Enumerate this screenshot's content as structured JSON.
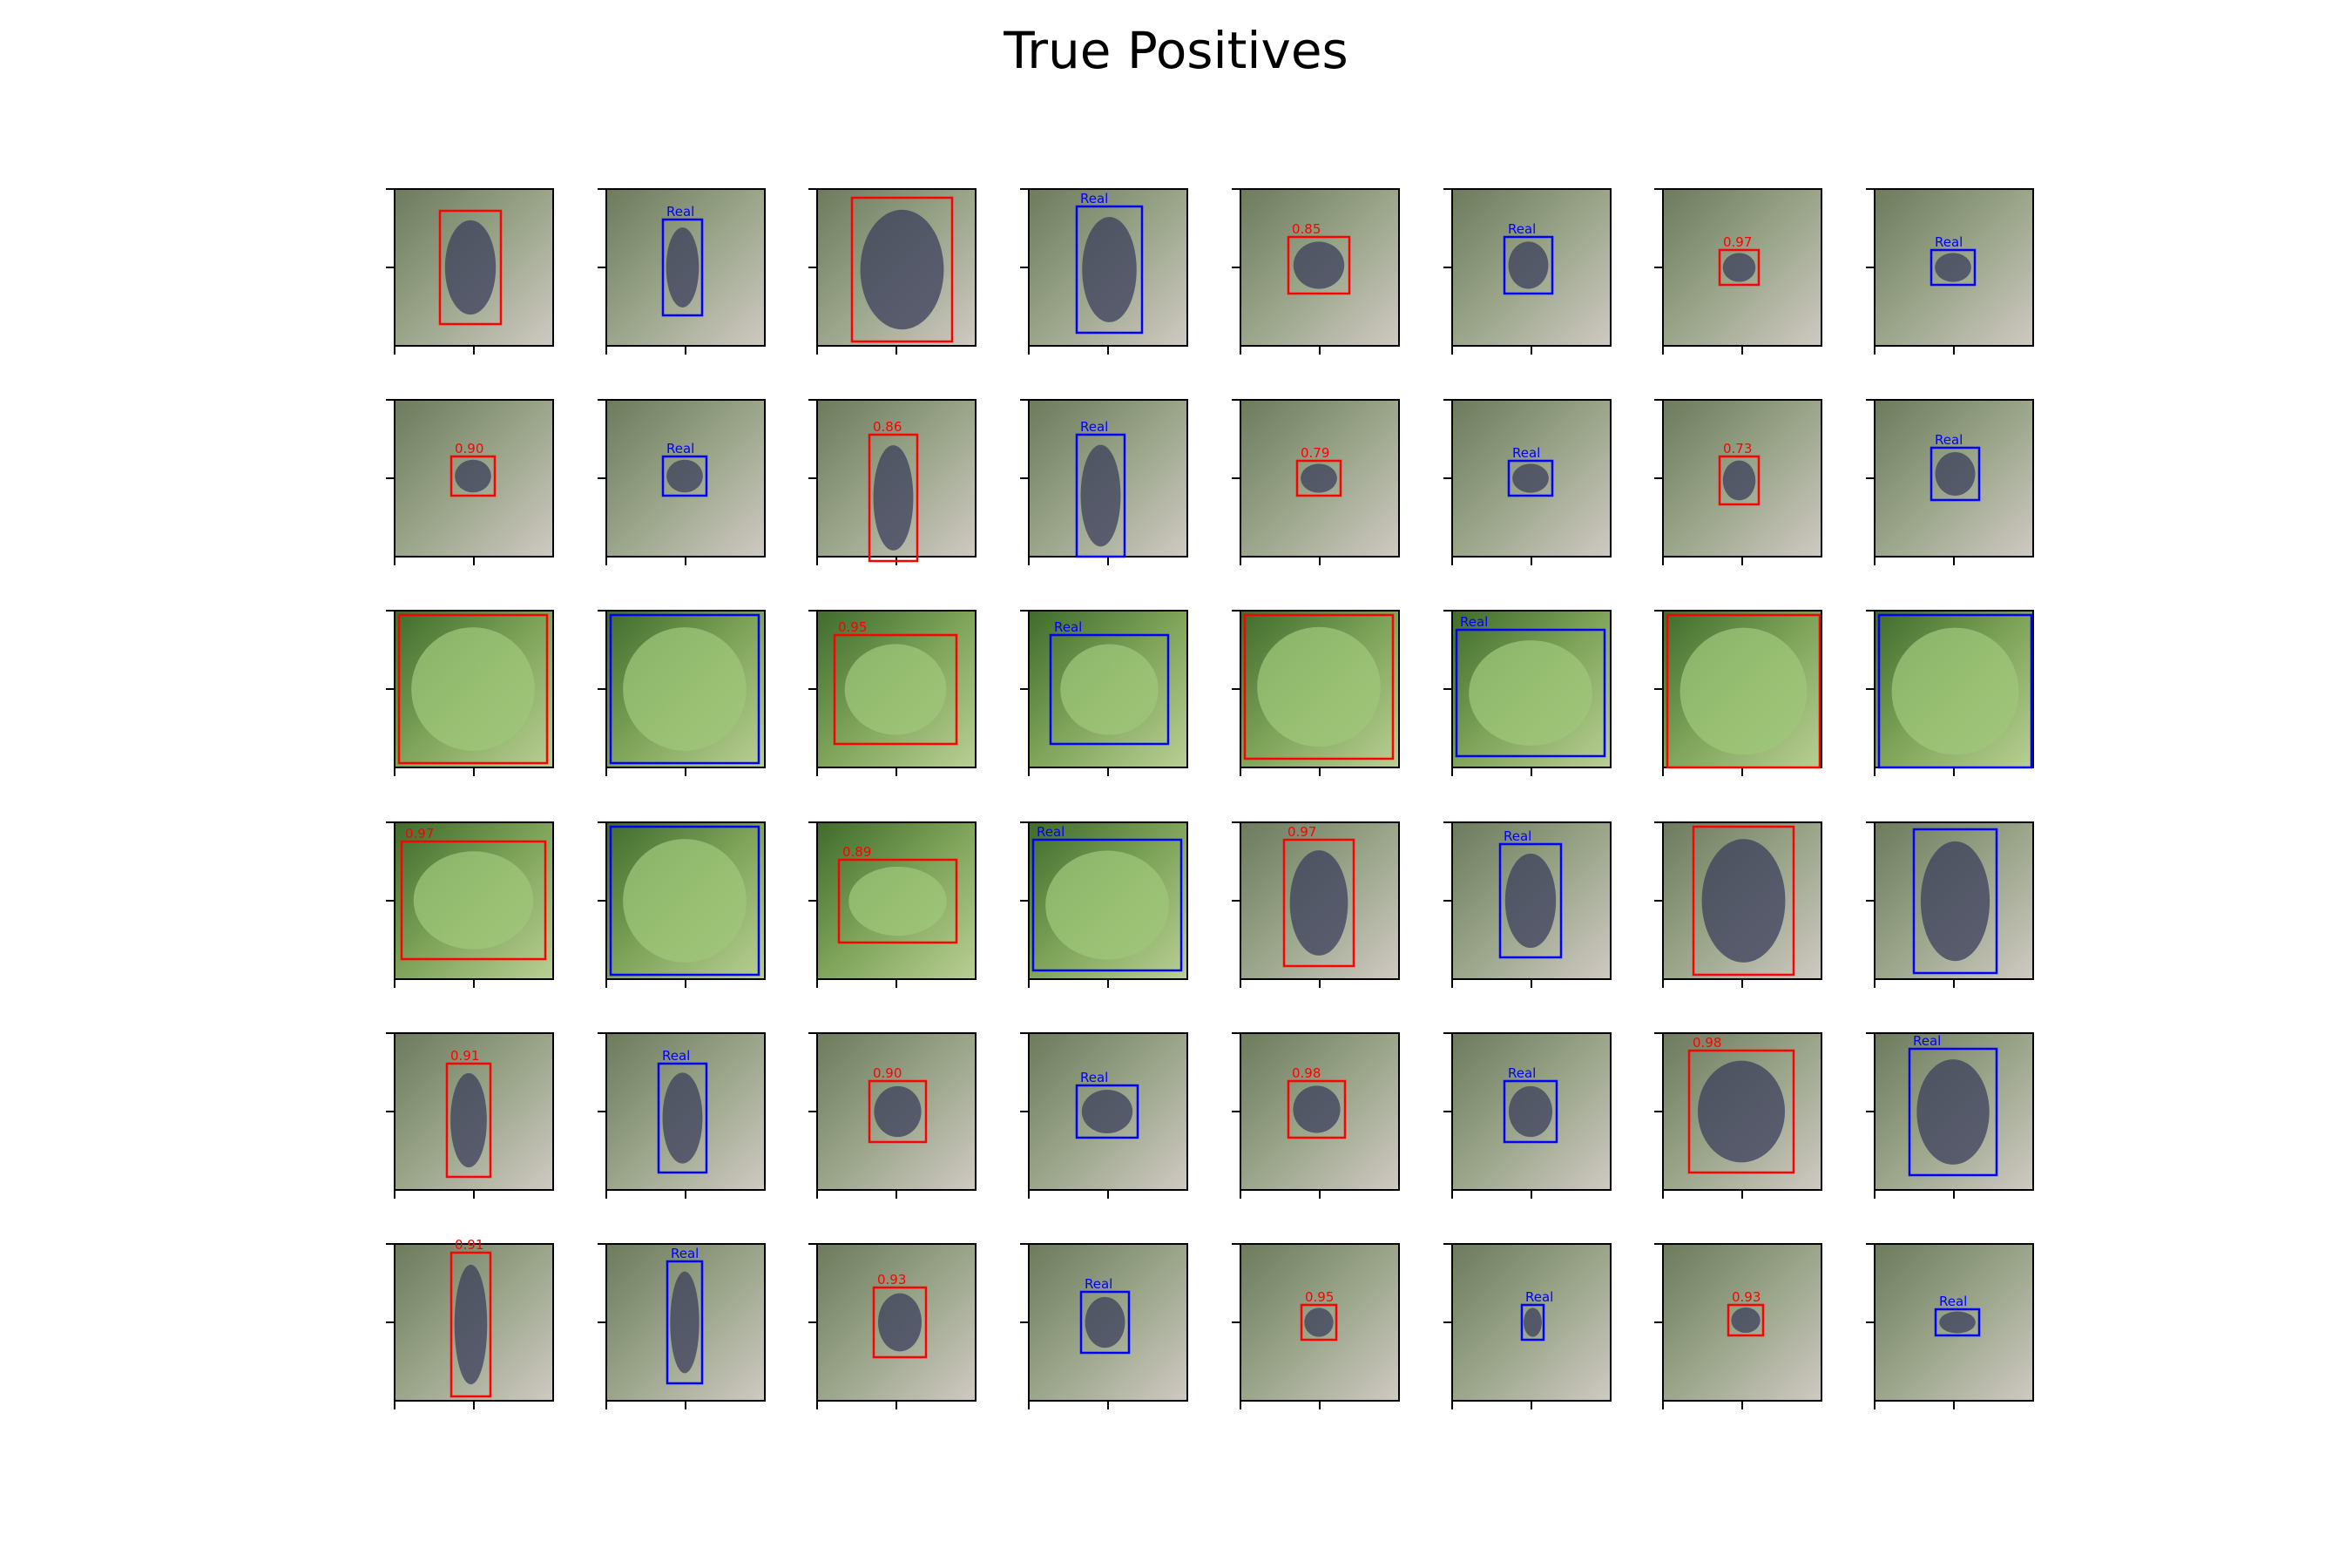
{
  "figure": {
    "title": "True Positives"
  },
  "legend_colors": {
    "prediction": "#ff0000",
    "ground_truth": "#0000ff"
  },
  "panels": [
    {
      "scene": "dark",
      "label": ""
    },
    {
      "scene": "dark",
      "label": "Real"
    },
    {
      "scene": "dark",
      "label": ""
    },
    {
      "scene": "dark",
      "label": "Real"
    },
    {
      "scene": "dark",
      "label": "0.85"
    },
    {
      "scene": "dark",
      "label": "Real"
    },
    {
      "scene": "dark",
      "label": "0.97"
    },
    {
      "scene": "dark",
      "label": "Real"
    },
    {
      "scene": "dark",
      "label": "0.90"
    },
    {
      "scene": "dark",
      "label": "Real"
    },
    {
      "scene": "dark",
      "label": "0.86"
    },
    {
      "scene": "dark",
      "label": "Real"
    },
    {
      "scene": "dark",
      "label": "0.79"
    },
    {
      "scene": "dark",
      "label": "Real"
    },
    {
      "scene": "dark",
      "label": "0.73"
    },
    {
      "scene": "dark",
      "label": "Real"
    },
    {
      "scene": "green",
      "label": ""
    },
    {
      "scene": "green",
      "label": ""
    },
    {
      "scene": "green",
      "label": "0.95"
    },
    {
      "scene": "green",
      "label": "Real"
    },
    {
      "scene": "green",
      "label": ""
    },
    {
      "scene": "green",
      "label": "Real"
    },
    {
      "scene": "green",
      "label": ""
    },
    {
      "scene": "green",
      "label": ""
    },
    {
      "scene": "green",
      "label": "0.97"
    },
    {
      "scene": "green",
      "label": ""
    },
    {
      "scene": "green",
      "label": "0.89"
    },
    {
      "scene": "green",
      "label": "Real"
    },
    {
      "scene": "dark",
      "label": "0.97"
    },
    {
      "scene": "dark",
      "label": "Real"
    },
    {
      "scene": "dark",
      "label": ""
    },
    {
      "scene": "dark",
      "label": ""
    },
    {
      "scene": "dark",
      "label": "0.91"
    },
    {
      "scene": "dark",
      "label": "Real"
    },
    {
      "scene": "dark",
      "label": "0.90"
    },
    {
      "scene": "dark",
      "label": "Real"
    },
    {
      "scene": "dark",
      "label": "0.98"
    },
    {
      "scene": "dark",
      "label": "Real"
    },
    {
      "scene": "dark",
      "label": "0.98"
    },
    {
      "scene": "dark",
      "label": "Real"
    },
    {
      "scene": "dark",
      "label": "0.91"
    },
    {
      "scene": "dark",
      "label": "Real"
    },
    {
      "scene": "dark",
      "label": "0.93"
    },
    {
      "scene": "dark",
      "label": "Real"
    },
    {
      "scene": "dark",
      "label": "0.95"
    },
    {
      "scene": "dark",
      "label": "Real"
    },
    {
      "scene": "dark",
      "label": "0.93"
    },
    {
      "scene": "dark",
      "label": "Real"
    }
  ]
}
